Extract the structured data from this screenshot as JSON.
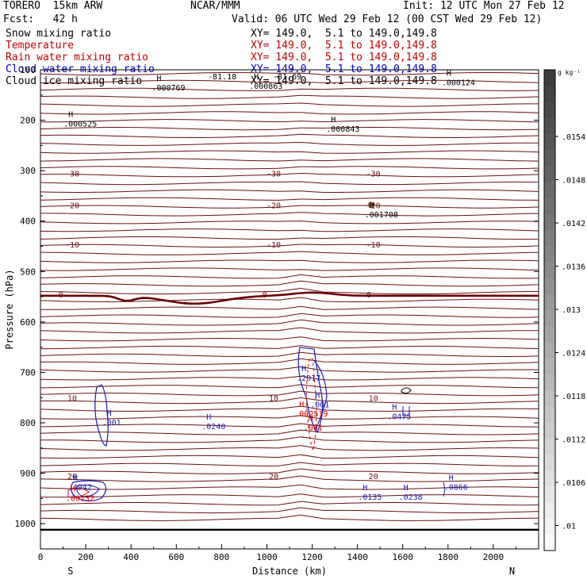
{
  "header": {
    "model": "TORERO  15km ARW",
    "center": "NCAR/MMM",
    "init": "Init: 12 UTC Mon 27 Feb 12",
    "fcst": "Fcst:   42 h",
    "valid": "Valid: 06 UTC Wed 29 Feb 12 (00 CST Wed 29 Feb 12)",
    "fields": [
      {
        "name": "Snow mixing ratio",
        "xy": "XY= 149.0,  5.1 to 149.0,149.8",
        "color": "#000000"
      },
      {
        "name": "Temperature",
        "xy": "XY= 149.0,  5.1 to 149.0,149.8",
        "color": "#c00000"
      },
      {
        "name": "Rain water mixing ratio",
        "xy": "XY= 149.0,  5.1 to 149.0,149.8",
        "color": "#c00000"
      },
      {
        "name": "Cloud water mixing ratio",
        "xy": "XY= 149.0,  5.1 to 149.0,149.8",
        "color": "#0000c0"
      },
      {
        "name": "Cloud ice mixing ratio",
        "xy": "XY= 149.0,  5.1 to 149.0,149.8",
        "color": "#000000"
      }
    ]
  },
  "colorbar": {
    "unit": "g kg⁻¹",
    "ticks": [
      ".0154",
      ".0148",
      ".0142",
      ".0136",
      ".013",
      ".0124",
      ".0118",
      ".0112",
      ".0106",
      ".01"
    ]
  },
  "chart_data": {
    "type": "contour",
    "xlabel": "Distance (km)",
    "ylabel": "Pressure (hPa)",
    "xlim": [
      0,
      2200
    ],
    "ylim": [
      1050,
      100
    ],
    "x_ticks": [
      0,
      200,
      400,
      600,
      800,
      1000,
      1200,
      1400,
      1600,
      1800,
      2000
    ],
    "y_ticks": [
      100,
      200,
      300,
      400,
      500,
      600,
      700,
      800,
      900,
      1000
    ],
    "x_end_labels": {
      "left": "S",
      "right": "N"
    },
    "temperature_levels": [
      {
        "label": "-30",
        "p": 305
      },
      {
        "label": "-20",
        "p": 368
      },
      {
        "label": "-10",
        "p": 446
      },
      {
        "label": "0",
        "p": 545
      },
      {
        "label": "10",
        "p": 750
      },
      {
        "label": "20",
        "p": 905
      }
    ],
    "temperature_annotations": [
      "-81.18",
      "-81.69"
    ],
    "maxima": [
      {
        "field": "snow",
        "value": ".000769",
        "x": 520,
        "p": 128
      },
      {
        "field": "snow",
        "value": ".000863",
        "x": 950,
        "p": 125
      },
      {
        "field": "snow",
        "value": ".000124",
        "x": 1800,
        "p": 118
      },
      {
        "field": "snow",
        "value": ".000525",
        "x": 130,
        "p": 200
      },
      {
        "field": "snow",
        "value": ".000843",
        "x": 1290,
        "p": 210
      },
      {
        "field": "snow",
        "value": ".001708",
        "x": 1460,
        "p": 380
      },
      {
        "field": "cloud_water",
        "value": ".2017",
        "x": 1160,
        "p": 704
      },
      {
        "field": "cloud_water",
        "value": ".001",
        "x": 1220,
        "p": 757
      },
      {
        "field": "cloud_water",
        "value": ".001",
        "x": 300,
        "p": 792
      },
      {
        "field": "cloud_water",
        "value": ".0240",
        "x": 740,
        "p": 800
      },
      {
        "field": "cloud_water",
        "value": ".0475",
        "x": 1560,
        "p": 780
      },
      {
        "field": "rain",
        "value": ".002519",
        "x": 1150,
        "p": 775
      },
      {
        "field": "rain",
        "value": ".001",
        "x": 1190,
        "p": 802
      },
      {
        "field": "cloud_water",
        "value": ".4942",
        "x": 150,
        "p": 920
      },
      {
        "field": "rain",
        "value": ".00132",
        "x": 140,
        "p": 942
      },
      {
        "field": "cloud_water",
        "value": ".0135",
        "x": 1430,
        "p": 940
      },
      {
        "field": "cloud_water",
        "value": ".0238",
        "x": 1610,
        "p": 940
      },
      {
        "field": "cloud_water",
        "value": ".0866",
        "x": 1810,
        "p": 920
      }
    ]
  }
}
